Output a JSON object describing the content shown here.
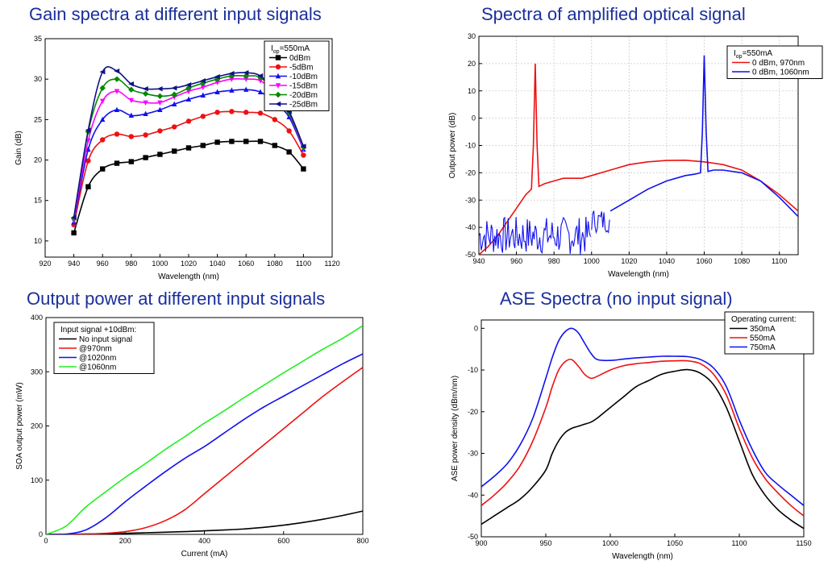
{
  "colors": {
    "title": "#1a2f9c",
    "black": "#000000",
    "red": "#ee1111",
    "blue": "#1111ee",
    "magenta": "#ff00ff",
    "green": "#008800",
    "navy": "#111188",
    "lime": "#22ee22"
  },
  "chart_data": [
    {
      "type": "line",
      "title": "Gain spectra at different input signals",
      "xlabel": "Wavelength (nm)",
      "ylabel": "Gain (dB)",
      "xlim": [
        920,
        1120
      ],
      "ylim": [
        8,
        35
      ],
      "xticks": [
        920,
        940,
        960,
        980,
        1000,
        1020,
        1040,
        1060,
        1080,
        1100,
        1120
      ],
      "yticks": [
        10,
        15,
        20,
        25,
        30,
        35
      ],
      "legend_header": "I",
      "legend_header_sub": "op",
      "legend_header_rest": "=550mA",
      "legend_position": "top-right",
      "x": [
        940,
        950,
        960,
        970,
        980,
        990,
        1000,
        1010,
        1020,
        1030,
        1040,
        1050,
        1060,
        1070,
        1080,
        1090,
        1100
      ],
      "series": [
        {
          "name": "0dBm",
          "color": "#000000",
          "marker": "square",
          "values": [
            11.0,
            16.7,
            18.9,
            19.6,
            19.8,
            20.3,
            20.7,
            21.1,
            21.5,
            21.8,
            22.2,
            22.3,
            22.3,
            22.3,
            21.8,
            21.0,
            18.9
          ]
        },
        {
          "name": "-5dBm",
          "color": "#ee1111",
          "marker": "circle",
          "values": [
            12.0,
            19.9,
            22.5,
            23.2,
            22.9,
            23.1,
            23.6,
            24.1,
            24.8,
            25.4,
            25.9,
            26.0,
            25.9,
            25.8,
            25.0,
            23.6,
            20.6
          ]
        },
        {
          "name": "-10dBm",
          "color": "#1111ee",
          "marker": "triangle",
          "values": [
            12.3,
            21.3,
            25.0,
            26.2,
            25.5,
            25.7,
            26.2,
            26.9,
            27.5,
            28.0,
            28.4,
            28.6,
            28.7,
            28.4,
            27.1,
            25.3,
            21.3
          ]
        },
        {
          "name": "-15dBm",
          "color": "#ff00ff",
          "marker": "tridown",
          "values": [
            12.5,
            22.4,
            27.3,
            28.5,
            27.4,
            27.1,
            27.1,
            27.8,
            28.5,
            29.0,
            29.6,
            30.0,
            30.0,
            29.8,
            28.2,
            25.7,
            21.4
          ]
        },
        {
          "name": "-20dBm",
          "color": "#008800",
          "marker": "diamond",
          "values": [
            12.8,
            23.5,
            28.9,
            30.0,
            28.7,
            28.2,
            27.9,
            28.1,
            28.9,
            29.5,
            30.0,
            30.4,
            30.4,
            30.2,
            28.3,
            25.8,
            21.6
          ]
        },
        {
          "name": "-25dBm",
          "color": "#111188",
          "marker": "triangleleft",
          "values": [
            12.9,
            23.7,
            30.9,
            31.0,
            29.4,
            28.8,
            28.8,
            28.9,
            29.3,
            29.8,
            30.3,
            30.7,
            30.8,
            30.4,
            28.4,
            26.0,
            21.7
          ]
        }
      ]
    },
    {
      "type": "line",
      "title": "Spectra of amplified optical signal",
      "xlabel": "Wavelength (nm)",
      "ylabel": "Output power (dB)",
      "xlim": [
        940,
        1110
      ],
      "ylim": [
        -50,
        30
      ],
      "xticks": [
        940,
        960,
        980,
        1000,
        1020,
        1040,
        1060,
        1080,
        1100
      ],
      "yticks": [
        -50,
        -40,
        -30,
        -20,
        -10,
        0,
        10,
        20,
        30
      ],
      "legend_header": "I",
      "legend_header_sub": "op",
      "legend_header_rest": "=550mA",
      "legend_position": "top-right",
      "series": [
        {
          "name": "0 dBm, 970nm",
          "color": "#ee1111",
          "x": [
            940,
            945,
            950,
            955,
            960,
            965,
            968,
            969,
            970,
            971,
            972,
            975,
            980,
            985,
            990,
            995,
            1000,
            1010,
            1020,
            1030,
            1040,
            1050,
            1060,
            1070,
            1080,
            1090,
            1100,
            1110
          ],
          "values": [
            -50,
            -47,
            -43,
            -38,
            -33,
            -28,
            -26,
            -10,
            20,
            -10,
            -25,
            -24,
            -23,
            -22,
            -22,
            -22,
            -21,
            -19,
            -17,
            -16,
            -15.5,
            -15.4,
            -16,
            -17,
            -19,
            -23,
            -28,
            -34
          ]
        },
        {
          "name": "0 dBm, 1060nm",
          "color": "#1111ee",
          "noise": [
            [
              940,
              1000,
              -50,
              -36
            ],
            [
              1000,
              1010,
              -42,
              -33
            ]
          ],
          "x": [
            1010,
            1020,
            1030,
            1040,
            1050,
            1055,
            1058,
            1059,
            1060,
            1061,
            1062,
            1065,
            1070,
            1080,
            1090,
            1100,
            1110
          ],
          "values": [
            -34,
            -30,
            -26,
            -23,
            -21,
            -20.5,
            -20,
            -5,
            23,
            -5,
            -19.5,
            -19,
            -19,
            -20,
            -23,
            -29,
            -36
          ]
        }
      ]
    },
    {
      "type": "line",
      "title": "Output power at different input signals",
      "xlabel": "Current (mA)",
      "ylabel": "SOA output power (mW)",
      "xlim": [
        0,
        800
      ],
      "ylim": [
        0,
        400
      ],
      "xticks": [
        0,
        200,
        400,
        600,
        800
      ],
      "yticks": [
        0,
        100,
        200,
        300,
        400
      ],
      "legend_header": "Input signal +10dBm:",
      "legend_position": "top-left",
      "x": [
        0,
        50,
        100,
        150,
        200,
        250,
        300,
        350,
        400,
        450,
        500,
        550,
        600,
        650,
        700,
        750,
        800
      ],
      "series": [
        {
          "name": "No input signal",
          "color": "#000000",
          "values": [
            0,
            0.2,
            0.6,
            1.2,
            2,
            3,
            4,
            5,
            6.5,
            8,
            10,
            13,
            17,
            22,
            28,
            35,
            43
          ]
        },
        {
          "name": "@970nm",
          "color": "#ee1111",
          "values": [
            0,
            0.2,
            0.6,
            2,
            5,
            12,
            25,
            45,
            75,
            105,
            135,
            165,
            195,
            225,
            255,
            282,
            308
          ]
        },
        {
          "name": "@1020nm",
          "color": "#1111ee",
          "values": [
            0,
            0.5,
            8,
            30,
            60,
            88,
            115,
            140,
            162,
            187,
            212,
            235,
            255,
            275,
            295,
            315,
            333
          ]
        },
        {
          "name": "@1060nm",
          "color": "#22ee22",
          "values": [
            0,
            15,
            50,
            78,
            105,
            130,
            156,
            180,
            205,
            228,
            252,
            275,
            298,
            320,
            342,
            362,
            385
          ]
        }
      ]
    },
    {
      "type": "line",
      "title": "ASE Spectra (no input signal)",
      "xlabel": "Wavelength (nm)",
      "ylabel": "ASE power density (dBm/nm)",
      "xlim": [
        900,
        1150
      ],
      "ylim": [
        -50,
        2
      ],
      "xticks": [
        900,
        950,
        1000,
        1050,
        1100,
        1150
      ],
      "yticks": [
        -50,
        -40,
        -30,
        -20,
        -10,
        0
      ],
      "legend_header": "Operating current:",
      "legend_position": "top-right",
      "x": [
        900,
        910,
        920,
        930,
        940,
        950,
        955,
        960,
        965,
        970,
        975,
        980,
        985,
        990,
        1000,
        1010,
        1020,
        1030,
        1040,
        1050,
        1060,
        1070,
        1080,
        1090,
        1100,
        1110,
        1120,
        1130,
        1140,
        1150
      ],
      "series": [
        {
          "name": "350mA",
          "color": "#000000",
          "values": [
            -47,
            -45,
            -43,
            -41,
            -38,
            -34,
            -30,
            -27,
            -25,
            -24,
            -23.5,
            -23,
            -22.5,
            -21.5,
            -19,
            -16.5,
            -14,
            -12.5,
            -11,
            -10.3,
            -9.9,
            -10.8,
            -13.5,
            -19,
            -27,
            -35,
            -40,
            -43.5,
            -46,
            -48
          ]
        },
        {
          "name": "550mA",
          "color": "#ee1111",
          "values": [
            -42.5,
            -40,
            -37,
            -33,
            -27,
            -19,
            -14,
            -10,
            -8,
            -7.5,
            -9,
            -11,
            -12,
            -11.5,
            -10,
            -9,
            -8.5,
            -8.2,
            -7.9,
            -7.8,
            -7.8,
            -8.5,
            -11,
            -16,
            -24,
            -31,
            -36,
            -39.5,
            -42.5,
            -45
          ]
        },
        {
          "name": "750mA",
          "color": "#1111ee",
          "values": [
            -38,
            -35.5,
            -32.5,
            -28,
            -21.5,
            -12,
            -7,
            -3,
            -0.8,
            0,
            -1,
            -3.5,
            -6,
            -7.5,
            -7.7,
            -7.4,
            -7.1,
            -6.9,
            -6.7,
            -6.7,
            -6.8,
            -7.5,
            -9.5,
            -14,
            -22,
            -29,
            -34.5,
            -37.5,
            -40,
            -42.5
          ]
        }
      ]
    }
  ]
}
